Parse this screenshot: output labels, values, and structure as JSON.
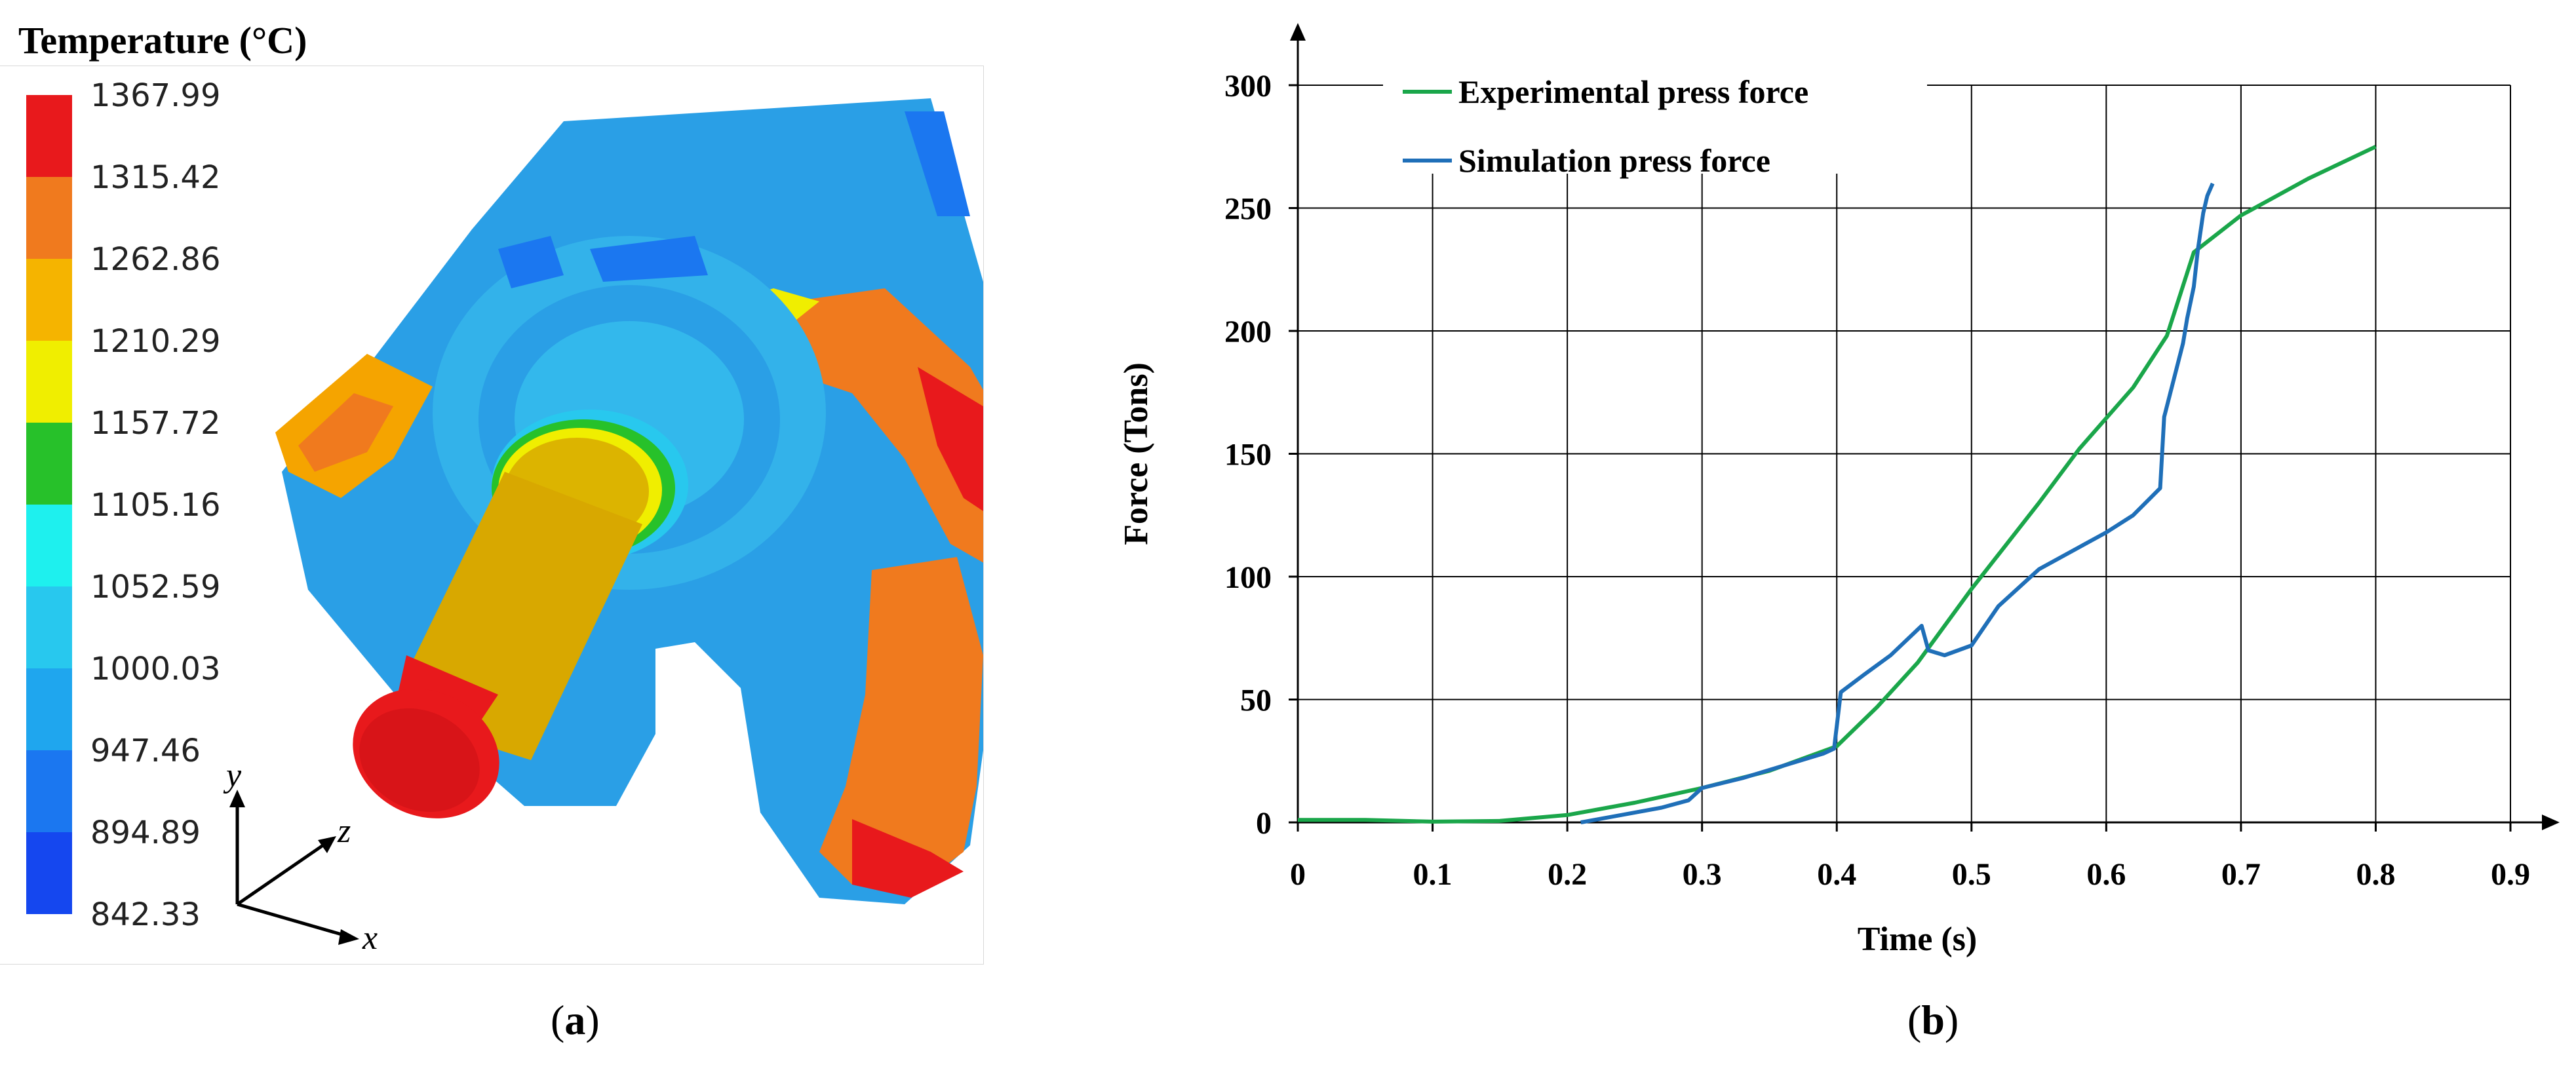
{
  "panel_a": {
    "legend_title": "Temperature (°C)",
    "colorbar_labels": [
      "1367.99",
      "1315.42",
      "1262.86",
      "1210.29",
      "1157.72",
      "1105.16",
      "1052.59",
      "1000.03",
      "947.46",
      "894.89",
      "842.33"
    ],
    "colorbar_colors": [
      "#e8191c",
      "#f07a1e",
      "#f5b400",
      "#f0ee00",
      "#27c12a",
      "#1ef0ee",
      "#28c8ee",
      "#1fa6ee",
      "#1b77f0",
      "#1547ef"
    ],
    "axis_labels": {
      "x": "x",
      "y": "y",
      "z": "z"
    },
    "caption_letter": "a"
  },
  "panel_b": {
    "caption_letter": "b"
  },
  "chart_data": {
    "type": "line",
    "xlabel": "Time (s)",
    "ylabel": "Force (Tons)",
    "xlim": [
      0,
      0.9
    ],
    "ylim": [
      0,
      300
    ],
    "x_ticks": [
      "0",
      "0.1",
      "0.2",
      "0.3",
      "0.4",
      "0.5",
      "0.6",
      "0.7",
      "0.8",
      "0.9"
    ],
    "y_ticks": [
      "0",
      "50",
      "100",
      "150",
      "200",
      "250",
      "300"
    ],
    "grid": true,
    "legend_position": "top-left",
    "series": [
      {
        "name": "Experimental press force",
        "color": "#1aa64a",
        "points": [
          [
            0,
            1
          ],
          [
            0.05,
            1
          ],
          [
            0.1,
            0.3
          ],
          [
            0.15,
            0.6
          ],
          [
            0.2,
            3
          ],
          [
            0.25,
            8
          ],
          [
            0.3,
            14
          ],
          [
            0.35,
            21
          ],
          [
            0.4,
            31
          ],
          [
            0.43,
            47
          ],
          [
            0.46,
            65
          ],
          [
            0.5,
            95
          ],
          [
            0.55,
            130
          ],
          [
            0.58,
            152
          ],
          [
            0.62,
            177
          ],
          [
            0.645,
            198
          ],
          [
            0.655,
            215
          ],
          [
            0.665,
            232
          ],
          [
            0.7,
            247
          ],
          [
            0.75,
            262
          ],
          [
            0.8,
            275
          ]
        ]
      },
      {
        "name": "Simulation press force",
        "color": "#1f6fb8",
        "points": [
          [
            0.21,
            0
          ],
          [
            0.24,
            3
          ],
          [
            0.27,
            6
          ],
          [
            0.29,
            9
          ],
          [
            0.3,
            14
          ],
          [
            0.33,
            18
          ],
          [
            0.36,
            23
          ],
          [
            0.39,
            28
          ],
          [
            0.398,
            30
          ],
          [
            0.403,
            53
          ],
          [
            0.42,
            60
          ],
          [
            0.44,
            68
          ],
          [
            0.463,
            80
          ],
          [
            0.468,
            70
          ],
          [
            0.48,
            68
          ],
          [
            0.5,
            72
          ],
          [
            0.52,
            88
          ],
          [
            0.55,
            103
          ],
          [
            0.58,
            112
          ],
          [
            0.6,
            118
          ],
          [
            0.62,
            125
          ],
          [
            0.64,
            136
          ],
          [
            0.643,
            165
          ],
          [
            0.65,
            180
          ],
          [
            0.657,
            195
          ],
          [
            0.66,
            205
          ],
          [
            0.665,
            218
          ],
          [
            0.668,
            233
          ],
          [
            0.672,
            248
          ],
          [
            0.675,
            255
          ],
          [
            0.679,
            260
          ]
        ]
      }
    ]
  }
}
